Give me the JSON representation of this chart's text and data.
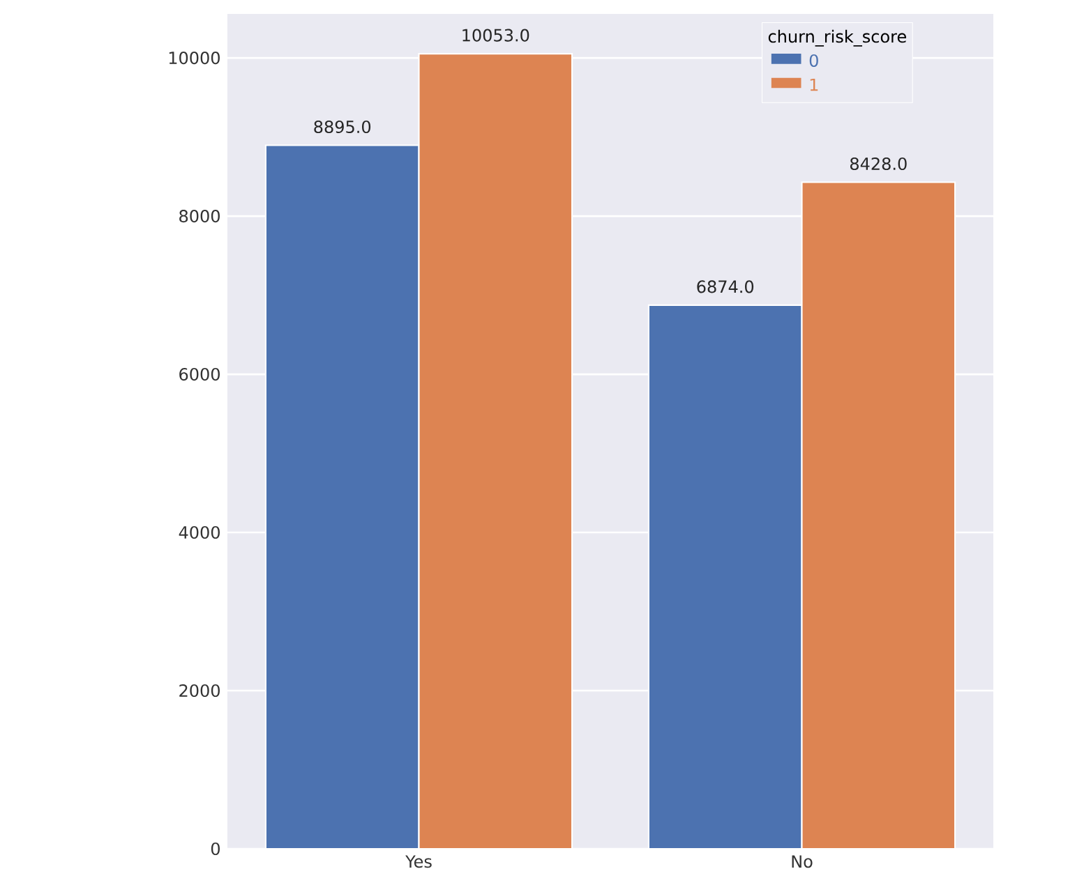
{
  "chart_data": {
    "type": "bar",
    "categories": [
      "Yes",
      "No"
    ],
    "legend_title": "churn_risk_score",
    "series": [
      {
        "name": "0",
        "color": "#4c72b0",
        "values": [
          8895,
          6874
        ],
        "value_labels": [
          "8895.0",
          "6874.0"
        ]
      },
      {
        "name": "1",
        "color": "#dd8452",
        "values": [
          10053,
          8428
        ],
        "value_labels": [
          "10053.0",
          "8428.0"
        ]
      }
    ],
    "ylim": [
      0,
      10556
    ],
    "yticks": [
      0,
      2000,
      4000,
      6000,
      8000,
      10000
    ],
    "grid": "y",
    "legend": "top right"
  }
}
